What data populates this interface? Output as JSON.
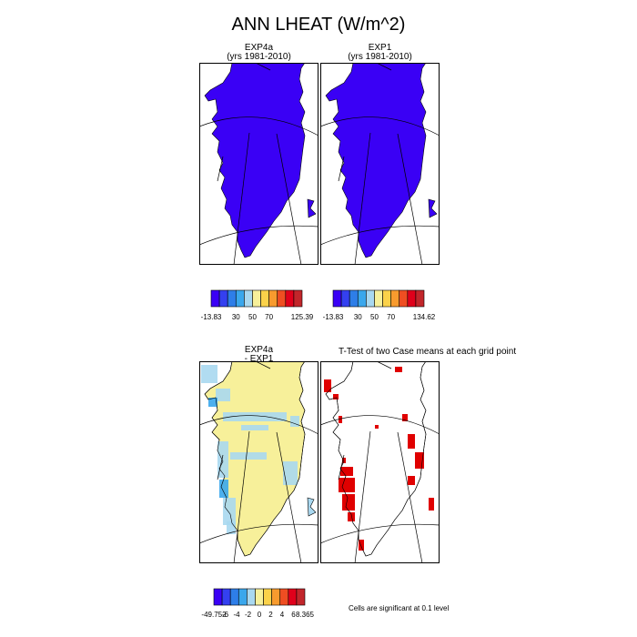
{
  "title": "ANN LHEAT (W/m^2)",
  "panels": {
    "p1": {
      "line1": "EXP4a",
      "line2": "(yrs 1981-2010)"
    },
    "p2": {
      "line1": "EXP1",
      "line2": "(yrs 1981-2010)"
    },
    "p3": {
      "line1": "EXP4a",
      "line2": "- EXP1"
    },
    "p4": {
      "line1": "T-Test of two Case means at each grid point"
    }
  },
  "colorbars": {
    "cb1": {
      "colors": [
        "#3a00f5",
        "#3440f0",
        "#2e7ee8",
        "#3aa7ec",
        "#a9d8f0",
        "#f7f09a",
        "#fbd24a",
        "#f89b2e",
        "#ef4e22",
        "#e0001b",
        "#c2262b"
      ],
      "labels": [
        "-13.83",
        "30",
        "50",
        "70",
        "125.39"
      ],
      "label_slots": [
        0,
        3,
        5,
        7,
        11
      ]
    },
    "cb2": {
      "colors": [
        "#3a00f5",
        "#3440f0",
        "#2e7ee8",
        "#3aa7ec",
        "#a9d8f0",
        "#f7f09a",
        "#fbd24a",
        "#f89b2e",
        "#ef4e22",
        "#e0001b",
        "#c2262b"
      ],
      "labels": [
        "-13.83",
        "30",
        "50",
        "70",
        "134.62"
      ],
      "label_slots": [
        0,
        3,
        5,
        7,
        11
      ]
    },
    "cb3": {
      "colors": [
        "#3a00f5",
        "#3440f0",
        "#2e7ee8",
        "#3aa7ec",
        "#a9d8f0",
        "#f7f09a",
        "#fbd24a",
        "#f89b2e",
        "#ef4e22",
        "#e0001b",
        "#c2262b"
      ],
      "labels": [
        "-49.752",
        "-6",
        "-4",
        "-2",
        "0",
        "2",
        "4",
        "6",
        "8.365"
      ]
    }
  },
  "footnote": "Cells are significant at 0.1 level",
  "colors": {
    "field": "#3a00f5",
    "diff_main": "#f7f09a",
    "diff_light": "#a9d8f0",
    "diff_mid": "#3aa7ec",
    "signif": "#e00000"
  }
}
